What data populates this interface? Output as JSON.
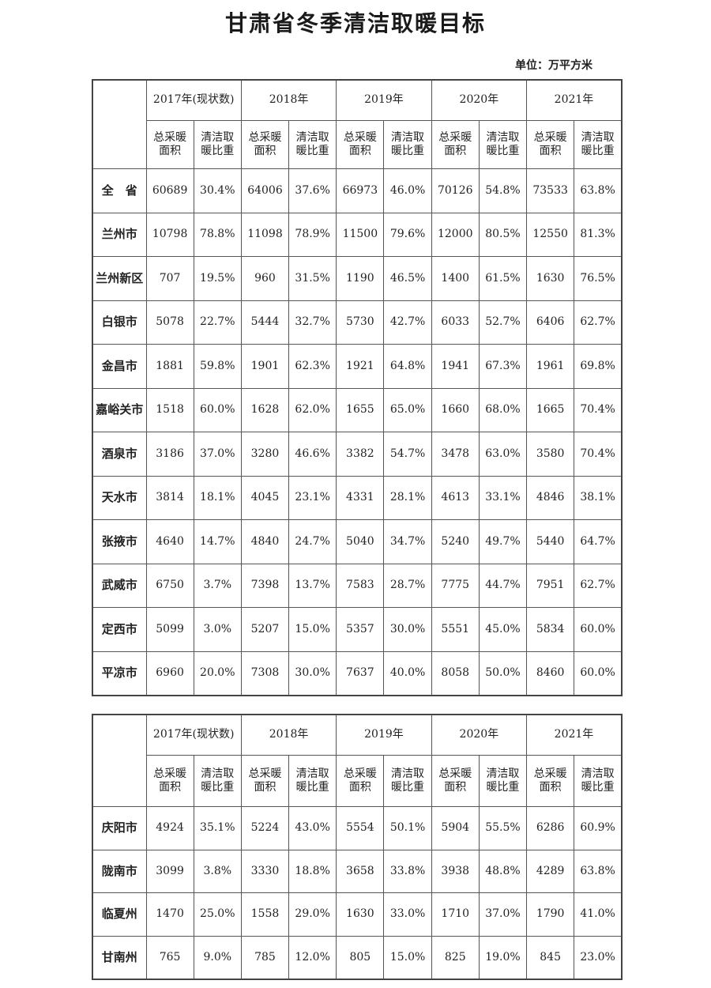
{
  "title": "甘肃省冬季清洁取暖目标",
  "unit": "单位：万平方米",
  "years": [
    "2017年(现状数)",
    "2018年",
    "2019年",
    "2020年",
    "2021年"
  ],
  "sub_headers": [
    "总采暖\n面积",
    "清洁取\n暖比重"
  ],
  "table1": [
    {
      "name": "全　省",
      "values": [
        "60689",
        "30.4%",
        "64006",
        "37.6%",
        "66973",
        "46.0%",
        "70126",
        "54.8%",
        "73533",
        "63.8%"
      ]
    },
    {
      "name": "兰州市",
      "values": [
        "10798",
        "78.8%",
        "11098",
        "78.9%",
        "11500",
        "79.6%",
        "12000",
        "80.5%",
        "12550",
        "81.3%"
      ]
    },
    {
      "name": "兰州新区",
      "values": [
        "707",
        "19.5%",
        "960",
        "31.5%",
        "1190",
        "46.5%",
        "1400",
        "61.5%",
        "1630",
        "76.5%"
      ]
    },
    {
      "name": "白银市",
      "values": [
        "5078",
        "22.7%",
        "5444",
        "32.7%",
        "5730",
        "42.7%",
        "6033",
        "52.7%",
        "6406",
        "62.7%"
      ]
    },
    {
      "name": "金昌市",
      "values": [
        "1881",
        "59.8%",
        "1901",
        "62.3%",
        "1921",
        "64.8%",
        "1941",
        "67.3%",
        "1961",
        "69.8%"
      ]
    },
    {
      "name": "嘉峪关市",
      "values": [
        "1518",
        "60.0%",
        "1628",
        "62.0%",
        "1655",
        "65.0%",
        "1660",
        "68.0%",
        "1665",
        "70.4%"
      ]
    },
    {
      "name": "酒泉市",
      "values": [
        "3186",
        "37.0%",
        "3280",
        "46.6%",
        "3382",
        "54.7%",
        "3478",
        "63.0%",
        "3580",
        "70.4%"
      ]
    },
    {
      "name": "天水市",
      "values": [
        "3814",
        "18.1%",
        "4045",
        "23.1%",
        "4331",
        "28.1%",
        "4613",
        "33.1%",
        "4846",
        "38.1%"
      ]
    },
    {
      "name": "张掖市",
      "values": [
        "4640",
        "14.7%",
        "4840",
        "24.7%",
        "5040",
        "34.7%",
        "5240",
        "49.7%",
        "5440",
        "64.7%"
      ]
    },
    {
      "name": "武威市",
      "values": [
        "6750",
        "3.7%",
        "7398",
        "13.7%",
        "7583",
        "28.7%",
        "7775",
        "44.7%",
        "7951",
        "62.7%"
      ]
    },
    {
      "name": "定西市",
      "values": [
        "5099",
        "3.0%",
        "5207",
        "15.0%",
        "5357",
        "30.0%",
        "5551",
        "45.0%",
        "5834",
        "60.0%"
      ]
    },
    {
      "name": "平凉市",
      "values": [
        "6960",
        "20.0%",
        "7308",
        "30.0%",
        "7637",
        "40.0%",
        "8058",
        "50.0%",
        "8460",
        "60.0%"
      ]
    }
  ],
  "table2": [
    {
      "name": "庆阳市",
      "values": [
        "4924",
        "35.1%",
        "5224",
        "43.0%",
        "5554",
        "50.1%",
        "5904",
        "55.5%",
        "6286",
        "60.9%"
      ]
    },
    {
      "name": "陇南市",
      "values": [
        "3099",
        "3.8%",
        "3330",
        "18.8%",
        "3658",
        "33.8%",
        "3938",
        "48.8%",
        "4289",
        "63.8%"
      ]
    },
    {
      "name": "临夏州",
      "values": [
        "1470",
        "25.0%",
        "1558",
        "29.0%",
        "1630",
        "33.0%",
        "1710",
        "37.0%",
        "1790",
        "41.0%"
      ]
    },
    {
      "name": "甘南州",
      "values": [
        "765",
        "9.0%",
        "785",
        "12.0%",
        "805",
        "15.0%",
        "825",
        "19.0%",
        "845",
        "23.0%"
      ]
    }
  ]
}
